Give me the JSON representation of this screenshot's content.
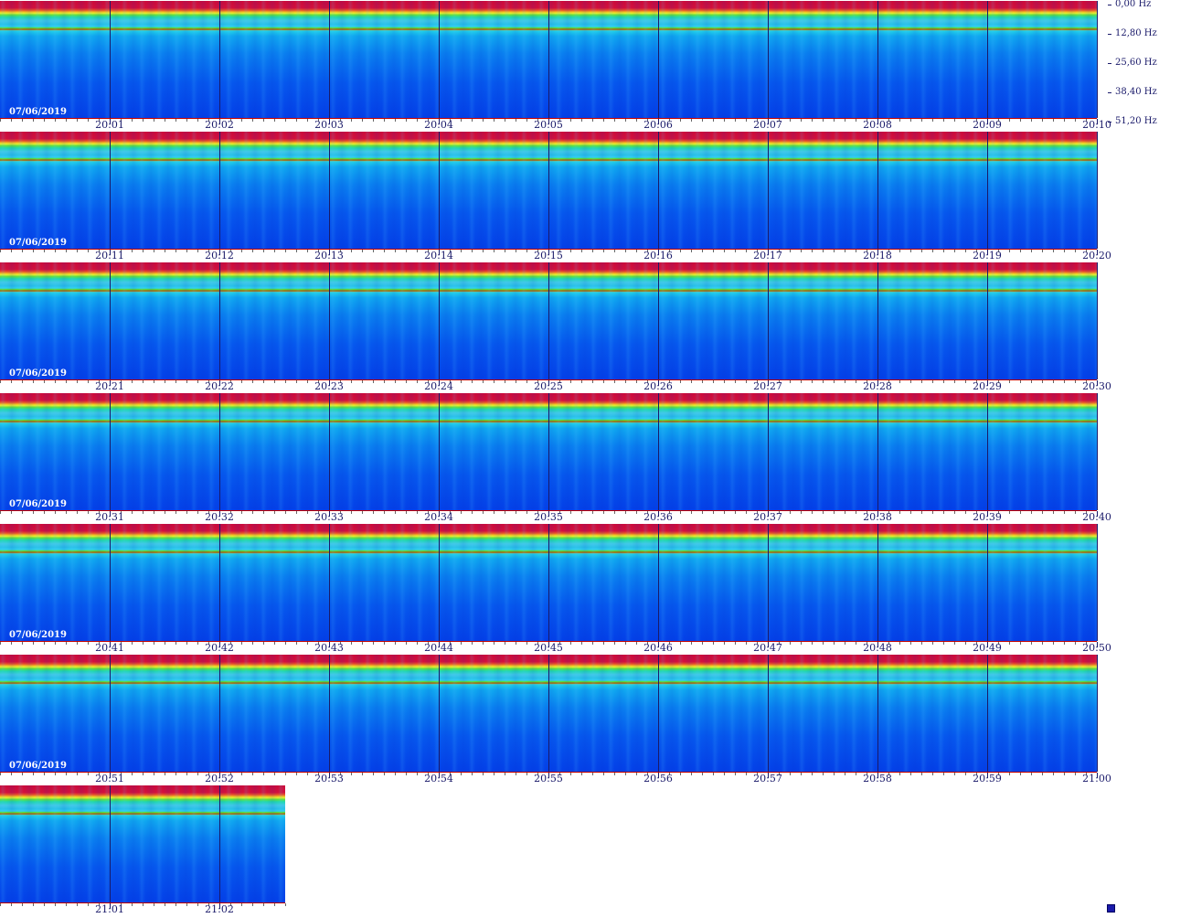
{
  "chart_data": {
    "type": "heatmap",
    "date": "07/06/2019",
    "y_axis_labels": [
      "0,00 Hz",
      "12,80 Hz",
      "25,60 Hz",
      "38,40 Hz",
      "51,20 Hz"
    ],
    "rows": [
      {
        "date": "07/06/2019",
        "minutes": 10,
        "time_labels": [
          "20:01",
          "20:02",
          "20:03",
          "20:04",
          "20:05",
          "20:06",
          "20:07",
          "20:08",
          "20:09",
          "20:10"
        ]
      },
      {
        "date": "07/06/2019",
        "minutes": 10,
        "time_labels": [
          "20:11",
          "20:12",
          "20:13",
          "20:14",
          "20:15",
          "20:16",
          "20:17",
          "20:18",
          "20:19",
          "20:20"
        ]
      },
      {
        "date": "07/06/2019",
        "minutes": 10,
        "time_labels": [
          "20:21",
          "20:22",
          "20:23",
          "20:24",
          "20:25",
          "20:26",
          "20:27",
          "20:28",
          "20:29",
          "20:30"
        ]
      },
      {
        "date": "07/06/2019",
        "minutes": 10,
        "time_labels": [
          "20:31",
          "20:32",
          "20:33",
          "20:34",
          "20:35",
          "20:36",
          "20:37",
          "20:38",
          "20:39",
          "20:40"
        ]
      },
      {
        "date": "07/06/2019",
        "minutes": 10,
        "time_labels": [
          "20:41",
          "20:42",
          "20:43",
          "20:44",
          "20:45",
          "20:46",
          "20:47",
          "20:48",
          "20:49",
          "20:50"
        ]
      },
      {
        "date": "07/06/2019",
        "minutes": 10,
        "time_labels": [
          "20:51",
          "20:52",
          "20:53",
          "20:54",
          "20:55",
          "20:56",
          "20:57",
          "20:58",
          "20:59",
          "21:00"
        ]
      },
      {
        "date": "",
        "minutes": 2.6,
        "time_labels": [
          "21:01",
          "21:02"
        ]
      }
    ],
    "colormap": [
      "#0440e8",
      "#0a80f0",
      "#20d0e8",
      "#60e040",
      "#f4c020",
      "#e8562a",
      "#cc0a3a"
    ]
  }
}
